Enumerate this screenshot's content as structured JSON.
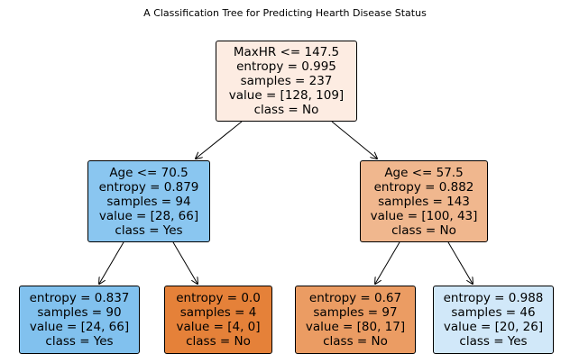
{
  "title": "A Classification Tree for Predicting Hearth Disease Status",
  "nodes": {
    "root": {
      "split": "MaxHR <= 147.5",
      "entropy": "entropy = 0.995",
      "samples": "samples = 237",
      "value": "value = [128, 109]",
      "class": "class = No",
      "color": "#fdece2"
    },
    "left": {
      "split": "Age <= 70.5",
      "entropy": "entropy = 0.879",
      "samples": "samples = 94",
      "value": "value = [28, 66]",
      "class": "class = Yes",
      "color": "#8ac6f0"
    },
    "right": {
      "split": "Age <= 57.5",
      "entropy": "entropy = 0.882",
      "samples": "samples = 143",
      "value": "value = [100, 43]",
      "class": "class = No",
      "color": "#f0b78e"
    },
    "ll": {
      "entropy": "entropy = 0.837",
      "samples": "samples = 90",
      "value": "value = [24, 66]",
      "class": "class = Yes",
      "color": "#81c1ee"
    },
    "lr": {
      "entropy": "entropy = 0.0",
      "samples": "samples = 4",
      "value": "value = [4, 0]",
      "class": "class = No",
      "color": "#e58139"
    },
    "rl": {
      "entropy": "entropy = 0.67",
      "samples": "samples = 97",
      "value": "value = [80, 17]",
      "class": "class = No",
      "color": "#eb9c63"
    },
    "rr": {
      "entropy": "entropy = 0.988",
      "samples": "samples = 46",
      "value": "value = [20, 26]",
      "class": "class = Yes",
      "color": "#d1e8f9"
    }
  }
}
